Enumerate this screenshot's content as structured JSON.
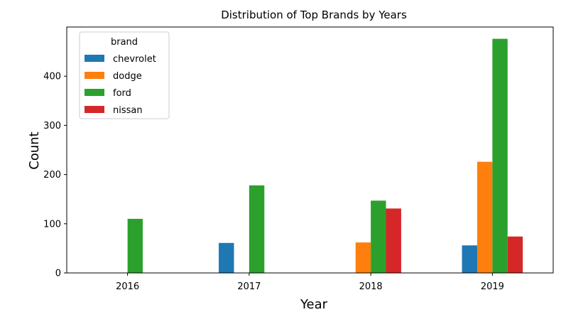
{
  "chart_data": {
    "type": "bar",
    "title": "Distribution of Top Brands by Years",
    "xlabel": "Year",
    "ylabel": "Count",
    "categories": [
      "2016",
      "2017",
      "2018",
      "2019"
    ],
    "ylim": [
      0,
      500
    ],
    "yticks": [
      0,
      100,
      200,
      300,
      400
    ],
    "grid": false,
    "legend": {
      "title": "brand",
      "placement": "top-left"
    },
    "series": [
      {
        "name": "chevrolet",
        "color": "#1f77b4",
        "values": [
          0,
          61,
          0,
          56
        ]
      },
      {
        "name": "dodge",
        "color": "#ff7f0e",
        "values": [
          0,
          0,
          62,
          226
        ]
      },
      {
        "name": "ford",
        "color": "#2ca02c",
        "values": [
          110,
          178,
          147,
          476
        ]
      },
      {
        "name": "nissan",
        "color": "#d62728",
        "values": [
          0,
          0,
          131,
          74
        ]
      }
    ]
  }
}
